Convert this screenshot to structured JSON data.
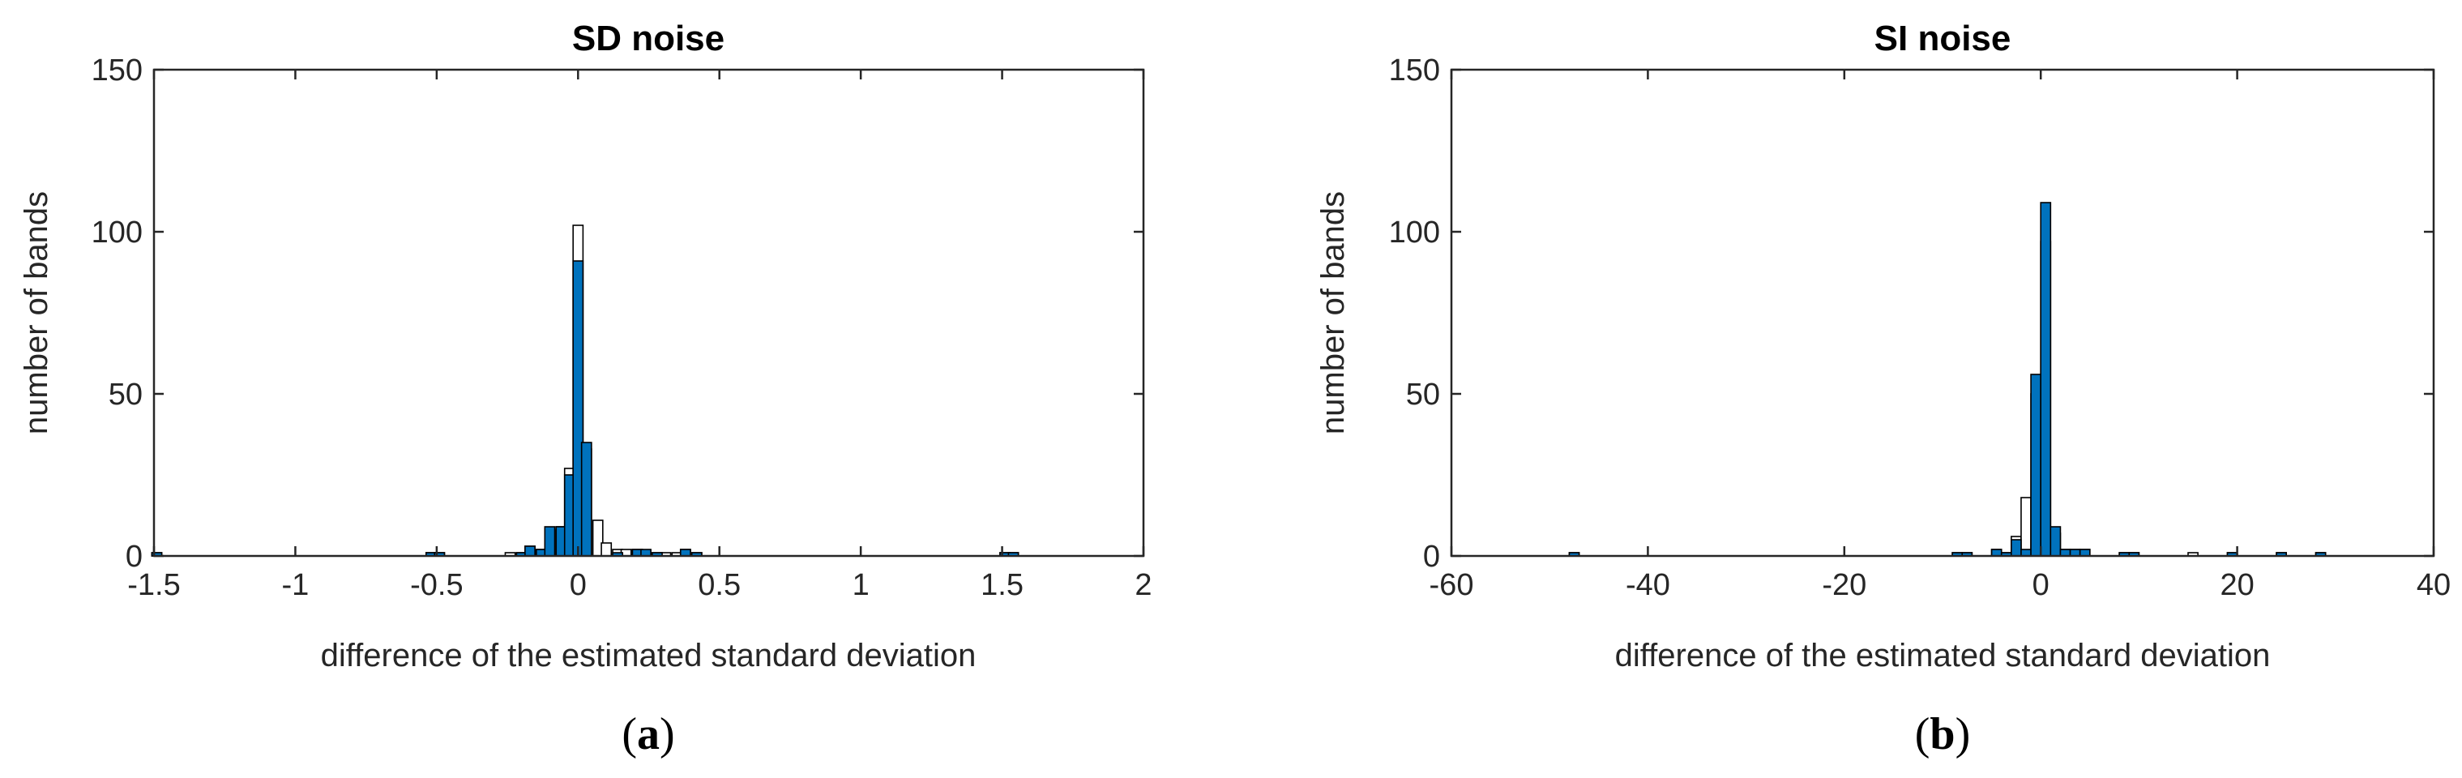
{
  "captions": [
    {
      "open": "(",
      "letter": "a",
      "close": ")"
    },
    {
      "open": "(",
      "letter": "b",
      "close": ")"
    }
  ],
  "colors": {
    "blue": "#0072BD",
    "white": "#ffffff",
    "edge": "#000000",
    "axis": "#262626"
  },
  "chart_data": [
    {
      "type": "bar",
      "title": "SD noise",
      "xlabel": "difference of the estimated standard deviation",
      "ylabel": "number of bands",
      "xlim": [
        -1.5,
        2
      ],
      "ylim": [
        0,
        150
      ],
      "xticks": [
        -1.5,
        -1,
        -0.5,
        0,
        0.5,
        1,
        1.5,
        2
      ],
      "xtick_labels": [
        "-1.5",
        "-1",
        "-0.5",
        "0",
        "0.5",
        "1",
        "1.5",
        "2"
      ],
      "yticks": [
        0,
        50,
        100,
        150
      ],
      "ytick_labels": [
        "0",
        "50",
        "100",
        "150"
      ],
      "bin_width": 0.035,
      "grid": false,
      "series": [
        {
          "color": "#ffffff",
          "x": [
            -1.49,
            -0.52,
            -0.49,
            -0.24,
            -0.2,
            -0.17,
            -0.13,
            -0.1,
            -0.06,
            -0.03,
            0.0,
            0.03,
            0.07,
            0.1,
            0.14,
            0.17,
            0.21,
            0.24,
            0.28,
            0.31,
            0.35,
            0.38,
            0.42,
            1.51,
            1.54
          ],
          "values": [
            1,
            1,
            1,
            1,
            1,
            3,
            2,
            8,
            9,
            27,
            102,
            33,
            11,
            4,
            2,
            2,
            2,
            1,
            1,
            1,
            1,
            2,
            1,
            1,
            1
          ]
        },
        {
          "color": "#0072BD",
          "x": [
            -1.49,
            -0.52,
            -0.49,
            -0.24,
            -0.2,
            -0.17,
            -0.13,
            -0.1,
            -0.06,
            -0.03,
            0.0,
            0.03,
            0.07,
            0.1,
            0.14,
            0.17,
            0.21,
            0.24,
            0.28,
            0.31,
            0.35,
            0.38,
            0.42,
            1.51,
            1.54
          ],
          "values": [
            1,
            1,
            1,
            0,
            1,
            3,
            2,
            9,
            9,
            25,
            91,
            35,
            0,
            0,
            1,
            0,
            2,
            2,
            1,
            0,
            0,
            2,
            1,
            1,
            1
          ]
        }
      ]
    },
    {
      "type": "bar",
      "title": "SI noise",
      "xlabel": "difference of the estimated standard deviation",
      "ylabel": "number of bands",
      "xlim": [
        -60,
        40
      ],
      "ylim": [
        0,
        150
      ],
      "xticks": [
        -60,
        -40,
        -20,
        0,
        20,
        40
      ],
      "xtick_labels": [
        "-60",
        "-40",
        "-20",
        "0",
        "20",
        "40"
      ],
      "yticks": [
        0,
        50,
        100,
        150
      ],
      "ytick_labels": [
        "0",
        "50",
        "100",
        "150"
      ],
      "bin_width": 1,
      "grid": false,
      "series": [
        {
          "color": "#ffffff",
          "x": [
            -47.5,
            -8.5,
            -7.5,
            -4.5,
            -3.5,
            -2.5,
            -1.5,
            -0.5,
            0.5,
            1.5,
            2.5,
            3.5,
            4.5,
            8.5,
            9.5,
            15.5,
            19.5,
            24.5,
            28.5
          ],
          "values": [
            1,
            1,
            1,
            2,
            1,
            6,
            18,
            50,
            97,
            7,
            2,
            2,
            2,
            1,
            1,
            1,
            1,
            1,
            1
          ]
        },
        {
          "color": "#0072BD",
          "x": [
            -47.5,
            -8.5,
            -7.5,
            -4.5,
            -3.5,
            -2.5,
            -1.5,
            -0.5,
            0.5,
            1.5,
            2.5,
            3.5,
            4.5,
            8.5,
            9.5,
            15.5,
            19.5,
            24.5,
            28.5
          ],
          "values": [
            1,
            1,
            1,
            2,
            1,
            5,
            2,
            56,
            109,
            9,
            2,
            2,
            2,
            1,
            1,
            0,
            1,
            1,
            1
          ]
        }
      ]
    }
  ]
}
